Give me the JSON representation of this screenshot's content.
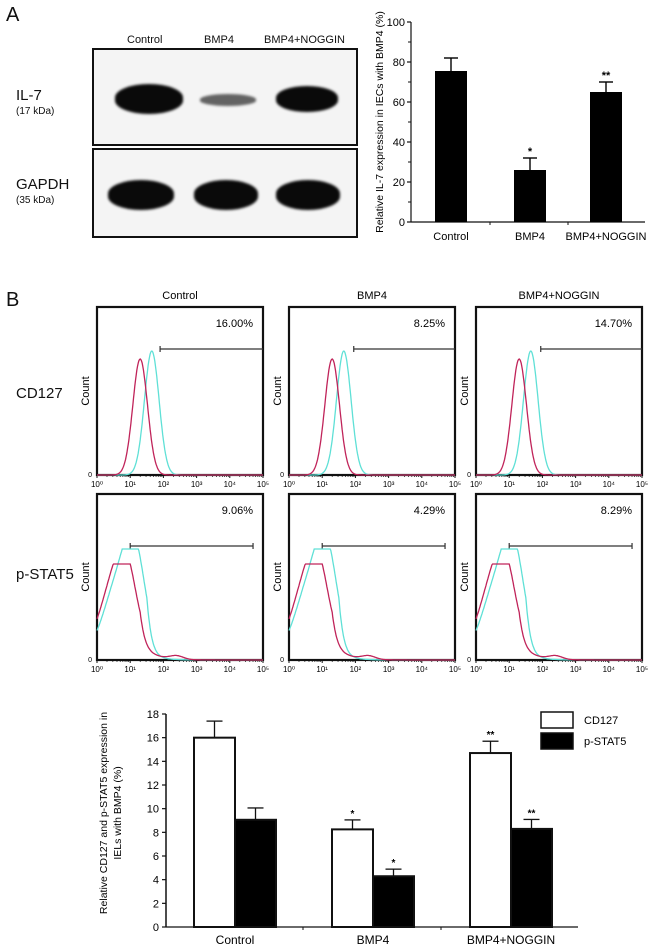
{
  "panel_a": {
    "letter": "A",
    "blot": {
      "lanes": [
        "Control",
        "BMP4",
        "BMP4+NOGGIN"
      ],
      "rows": [
        {
          "name": "IL-7",
          "size": "(17 kDa)"
        },
        {
          "name": "GAPDH",
          "size": "(35 kDa)"
        }
      ]
    }
  },
  "panel_b": {
    "letter": "B",
    "columns": [
      "Control",
      "BMP4",
      "BMP4+NOGGIN"
    ],
    "rows": [
      {
        "name": "CD127",
        "percents": [
          "16.00%",
          "8.25%",
          "14.70%"
        ]
      },
      {
        "name": "p-STAT5",
        "percents": [
          "9.06%",
          "4.29%",
          "8.29%"
        ]
      }
    ],
    "y_axis_label": "Count",
    "y_zero_label": "0",
    "x_tick_labels": [
      "10⁰",
      "10¹",
      "10²",
      "10³",
      "10⁴",
      "10⁵"
    ],
    "colors": {
      "control_curve": "#c0245a",
      "treated_curve": "#5fe0d6"
    }
  },
  "chart_data": [
    {
      "type": "bar",
      "title": "",
      "categories": [
        "Control",
        "BMP4",
        "BMP4+NOGGIN"
      ],
      "values": [
        75.5,
        26,
        65
      ],
      "errors": [
        6.5,
        6,
        5
      ],
      "annotations": [
        "",
        "*",
        "**"
      ],
      "xlabel": "",
      "ylabel": "Relative IL-7 expression in IECs with BMP4 (%)",
      "ylim": [
        0,
        100
      ],
      "yticks": [
        0,
        20,
        40,
        60,
        80,
        100
      ],
      "grid": false,
      "colors": [
        "#000000"
      ]
    },
    {
      "type": "bar",
      "title": "",
      "categories": [
        "Control",
        "BMP4",
        "BMP4+NOGGIN"
      ],
      "series": [
        {
          "name": "CD127",
          "values": [
            16.0,
            8.25,
            14.7
          ],
          "errors": [
            1.4,
            0.8,
            1.0
          ],
          "annotations": [
            "",
            "*",
            "**"
          ],
          "color": "#ffffff"
        },
        {
          "name": "p-STAT5",
          "values": [
            9.06,
            4.29,
            8.29
          ],
          "errors": [
            1.0,
            0.6,
            0.8
          ],
          "annotations": [
            "",
            "*",
            "**"
          ],
          "color": "#000000"
        }
      ],
      "xlabel": "",
      "ylabel": "Relative CD127 and p-STAT5 expression in IELs with BMP4 (%)",
      "ylabel_line1": "Relative CD127 and p-STAT5  expression in",
      "ylabel_line2": "IELs with BMP4 (%)",
      "ylim": [
        0,
        18
      ],
      "yticks": [
        0,
        2,
        4,
        6,
        8,
        10,
        12,
        14,
        16,
        18
      ],
      "legend_position": "top-right",
      "grid": false
    }
  ]
}
